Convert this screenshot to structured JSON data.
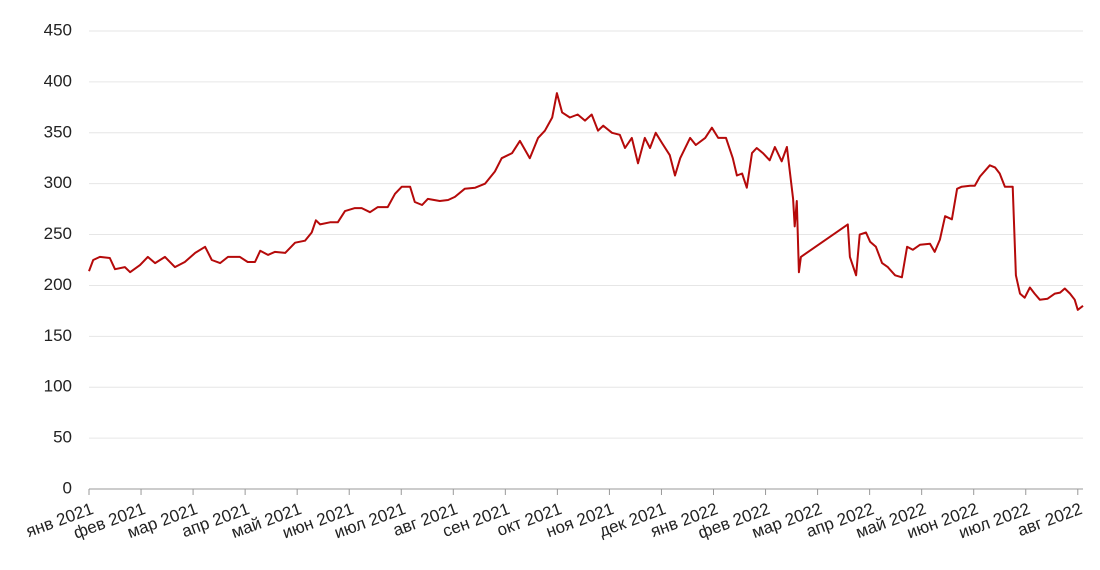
{
  "chart_data": {
    "type": "line",
    "color": "#b50a0a",
    "grid": true,
    "xlim": [
      0,
      19.1
    ],
    "ylim": [
      0,
      450
    ],
    "yticks": [
      0,
      50,
      100,
      150,
      200,
      250,
      300,
      350,
      400,
      450
    ],
    "xticks": [
      {
        "value": 0,
        "label": "янв 2021"
      },
      {
        "value": 1,
        "label": "фев 2021"
      },
      {
        "value": 2,
        "label": "мар 2021"
      },
      {
        "value": 3,
        "label": "апр 2021"
      },
      {
        "value": 4,
        "label": "май 2021"
      },
      {
        "value": 5,
        "label": "июн 2021"
      },
      {
        "value": 6,
        "label": "июл 2021"
      },
      {
        "value": 7,
        "label": "авг 2021"
      },
      {
        "value": 8,
        "label": "сен 2021"
      },
      {
        "value": 9,
        "label": "окт 2021"
      },
      {
        "value": 10,
        "label": "ноя 2021"
      },
      {
        "value": 11,
        "label": "дек 2021"
      },
      {
        "value": 12,
        "label": "янв 2022"
      },
      {
        "value": 13,
        "label": "фев 2022"
      },
      {
        "value": 14,
        "label": "мар 2022"
      },
      {
        "value": 15,
        "label": "апр 2022"
      },
      {
        "value": 16,
        "label": "май 2022"
      },
      {
        "value": 17,
        "label": "июн 2022"
      },
      {
        "value": 18,
        "label": "июл 2022"
      },
      {
        "value": 19,
        "label": "авг 2022"
      }
    ],
    "x": [
      0,
      0.08,
      0.21,
      0.4,
      0.5,
      0.69,
      0.79,
      0.98,
      1.13,
      1.27,
      1.46,
      1.65,
      1.84,
      2.04,
      2.23,
      2.36,
      2.52,
      2.67,
      2.9,
      3.05,
      3.19,
      3.29,
      3.44,
      3.57,
      3.77,
      3.96,
      4.15,
      4.28,
      4.36,
      4.44,
      4.63,
      4.78,
      4.92,
      5.11,
      5.24,
      5.4,
      5.55,
      5.74,
      5.88,
      6.01,
      6.17,
      6.26,
      6.4,
      6.51,
      6.74,
      6.9,
      7.03,
      7.22,
      7.42,
      7.61,
      7.8,
      7.93,
      8.13,
      8.28,
      8.47,
      8.63,
      8.76,
      8.9,
      8.99,
      9.09,
      9.24,
      9.39,
      9.53,
      9.66,
      9.78,
      9.88,
      10.05,
      10.2,
      10.3,
      10.43,
      10.55,
      10.68,
      10.78,
      10.89,
      11.01,
      11.16,
      11.26,
      11.36,
      11.55,
      11.66,
      11.84,
      11.97,
      12.09,
      12.24,
      12.37,
      12.45,
      12.55,
      12.64,
      12.74,
      12.83,
      12.95,
      13.08,
      13.18,
      13.31,
      13.41,
      13.53,
      13.56,
      13.6,
      13.64,
      13.68,
      14.58,
      14.62,
      14.74,
      14.81,
      14.93,
      15.01,
      15.12,
      15.24,
      15.35,
      15.49,
      15.62,
      15.72,
      15.83,
      15.97,
      16.16,
      16.25,
      16.35,
      16.45,
      16.58,
      16.68,
      16.77,
      16.93,
      17.02,
      17.12,
      17.31,
      17.41,
      17.5,
      17.6,
      17.75,
      17.81,
      17.89,
      17.98,
      18.08,
      18.17,
      18.27,
      18.42,
      18.56,
      18.66,
      18.75,
      18.85,
      18.94,
      19.0,
      19.1
    ],
    "values": [
      214,
      225,
      228,
      227,
      216,
      218,
      213,
      220,
      228,
      222,
      228,
      218,
      223,
      232,
      238,
      225,
      222,
      228,
      228,
      223,
      223,
      234,
      230,
      233,
      232,
      242,
      244,
      252,
      264,
      260,
      262,
      262,
      273,
      276,
      276,
      272,
      277,
      277,
      290,
      297,
      297,
      282,
      279,
      285,
      283,
      284,
      287,
      295,
      296,
      300,
      312,
      325,
      330,
      342,
      325,
      345,
      352,
      365,
      389,
      370,
      365,
      368,
      362,
      368,
      352,
      357,
      350,
      348,
      335,
      345,
      320,
      345,
      335,
      350,
      340,
      328,
      308,
      325,
      345,
      338,
      345,
      355,
      345,
      345,
      325,
      308,
      310,
      296,
      330,
      335,
      330,
      323,
      336,
      322,
      336,
      285,
      258,
      283,
      213,
      228,
      260,
      228,
      210,
      250,
      252,
      243,
      238,
      222,
      218,
      210,
      208,
      238,
      235,
      240,
      241,
      233,
      245,
      268,
      265,
      295,
      297,
      298,
      298,
      307,
      318,
      316,
      310,
      297,
      297,
      210,
      192,
      188,
      198,
      192,
      186,
      187,
      192,
      193,
      197,
      192,
      186,
      176,
      180
    ]
  }
}
